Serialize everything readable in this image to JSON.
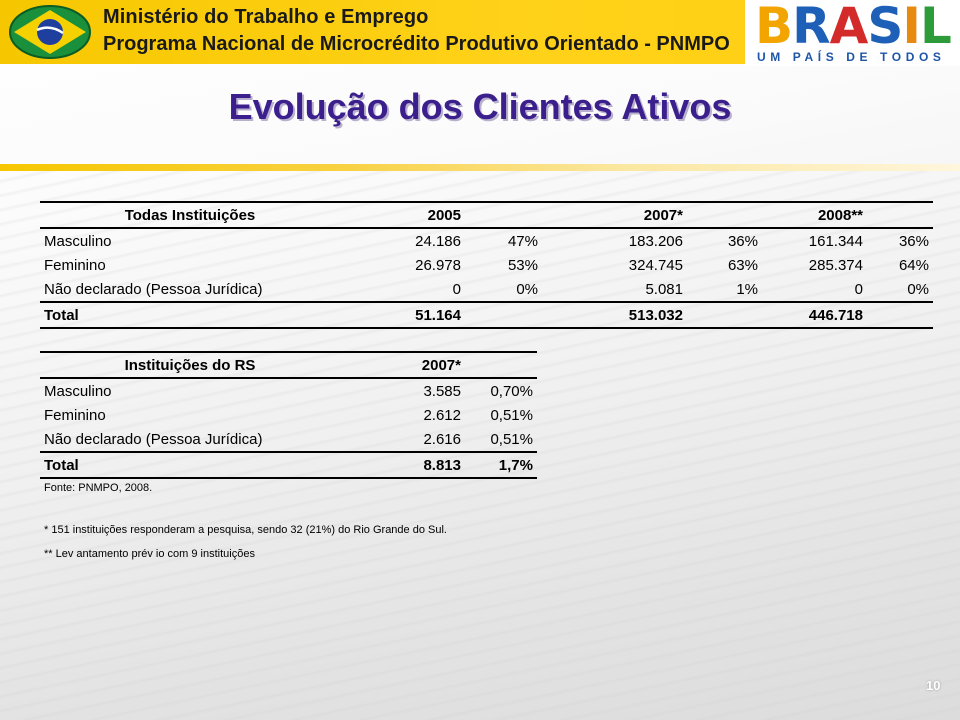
{
  "header": {
    "ministry": "Ministério do Trabalho e Emprego",
    "program": "Programa Nacional de Microcrédito Produtivo Orientado - PNMPO",
    "logo": {
      "word_letters": [
        "B",
        "R",
        "A",
        "S",
        "I",
        "L"
      ],
      "letter_colors": [
        "#f2a400",
        "#1e5fb8",
        "#d32a2a",
        "#1e5fb8",
        "#e88a10",
        "#2e9b3a"
      ],
      "tagline": "UM PAÍS DE TODOS"
    },
    "colors": {
      "banner": "#ffd21a",
      "title": "#3b1f8c"
    }
  },
  "title": "Evolução dos Clientes Ativos",
  "table_all": {
    "headers": [
      "Todas Instituições",
      "2005",
      "2007*",
      "2008**"
    ],
    "rows": [
      {
        "label": "Masculino",
        "v2005": "24.186",
        "p2005": "47%",
        "v2007": "183.206",
        "p2007": "36%",
        "v2008": "161.344",
        "p2008": "36%"
      },
      {
        "label": "Feminino",
        "v2005": "26.978",
        "p2005": "53%",
        "v2007": "324.745",
        "p2007": "63%",
        "v2008": "285.374",
        "p2008": "64%"
      },
      {
        "label": "Não declarado (Pessoa Jurídica)",
        "v2005": "0",
        "p2005": "0%",
        "v2007": "5.081",
        "p2007": "1%",
        "v2008": "0",
        "p2008": "0%"
      }
    ],
    "total": {
      "label": "Total",
      "v2005": "51.164",
      "v2007": "513.032",
      "v2008": "446.718"
    }
  },
  "table_rs": {
    "headers": [
      "Instituições do RS",
      "2007*"
    ],
    "rows": [
      {
        "label": "Masculino",
        "value": "3.585",
        "pct": "0,70%"
      },
      {
        "label": "Feminino",
        "value": "2.612",
        "pct": "0,51%"
      },
      {
        "label": "Não declarado (Pessoa Jurídica)",
        "value": "2.616",
        "pct": "0,51%"
      }
    ],
    "total": {
      "label": "Total",
      "value": "8.813",
      "pct": "1,7%"
    }
  },
  "source": "Fonte: PNMPO, 2008.",
  "footnotes": [
    "*  151 instituições responderam a pesquisa, sendo 32 (21%) do Rio Grande do Sul.",
    "** Lev antamento prév io com 9 instituições"
  ],
  "page_number": "10"
}
